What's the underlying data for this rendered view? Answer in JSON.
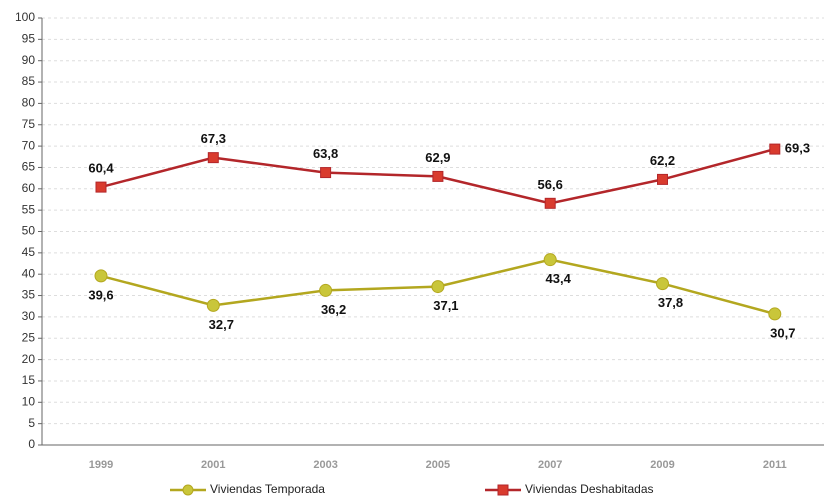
{
  "chart_data": {
    "type": "line",
    "categories": [
      "1999",
      "2001",
      "2003",
      "2005",
      "2007",
      "2009",
      "2011"
    ],
    "series": [
      {
        "name": "Viviendas Temporada",
        "color": "#b3a71f",
        "marker_color": "#c9c63a",
        "marker": "circle",
        "values": [
          39.6,
          32.7,
          36.2,
          37.1,
          43.4,
          37.8,
          30.7
        ],
        "value_labels": [
          "39,6",
          "32,7",
          "36,2",
          "37,1",
          "43,4",
          "37,8",
          "30,7"
        ]
      },
      {
        "name": "Viviendas Deshabitadas",
        "color": "#b3262a",
        "marker_color": "#d93b2e",
        "marker": "square",
        "values": [
          60.4,
          67.3,
          63.8,
          62.9,
          56.6,
          62.2,
          69.3
        ],
        "value_labels": [
          "60,4",
          "67,3",
          "63,8",
          "62,9",
          "56,6",
          "62,2",
          "69,3"
        ]
      }
    ],
    "ylim": [
      0,
      100
    ],
    "yticks": [
      0,
      5,
      10,
      15,
      20,
      25,
      30,
      35,
      40,
      45,
      50,
      55,
      60,
      65,
      70,
      75,
      80,
      85,
      90,
      95,
      100
    ],
    "grid": true,
    "legend": "bottom"
  }
}
